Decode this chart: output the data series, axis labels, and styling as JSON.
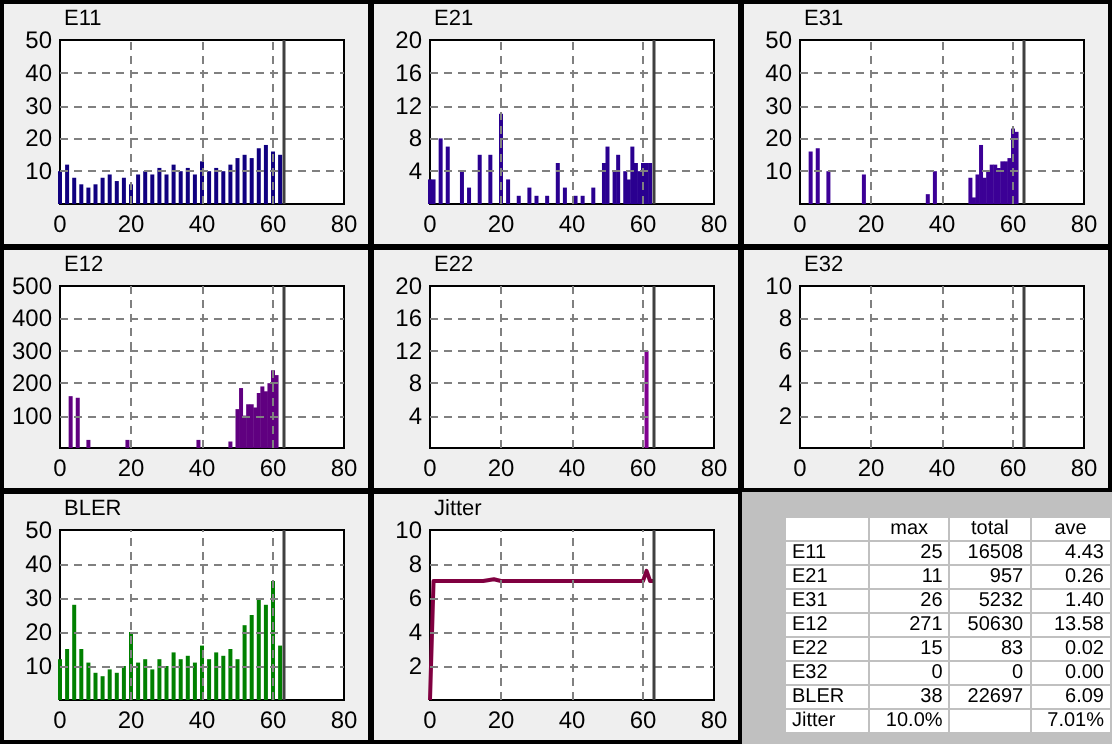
{
  "chart_data": [
    {
      "type": "bar",
      "title": "E11",
      "color": "#10007f",
      "x": [
        0,
        2,
        4,
        6,
        8,
        10,
        12,
        14,
        16,
        18,
        20,
        22,
        24,
        26,
        28,
        30,
        32,
        34,
        36,
        38,
        40,
        42,
        44,
        46,
        48,
        50,
        52,
        54,
        56,
        58,
        60,
        62
      ],
      "values": [
        10,
        12,
        8,
        6,
        5,
        6,
        8,
        9,
        7,
        8,
        6,
        9,
        10,
        9,
        11,
        9,
        12,
        10,
        11,
        9,
        13,
        10,
        11,
        10,
        12,
        14,
        15,
        14,
        17,
        18,
        16,
        15
      ],
      "xlim": [
        0,
        80
      ],
      "xticks": [
        0,
        20,
        40,
        60,
        80
      ],
      "ylim": [
        0,
        50
      ],
      "yticks": [
        10,
        20,
        30,
        40,
        50
      ],
      "grid": true,
      "ref_lines": [
        {
          "axis": "x",
          "value": 63,
          "color": "#404040"
        }
      ]
    },
    {
      "type": "bar",
      "title": "E21",
      "color": "#2a0090",
      "x": [
        0,
        1,
        3,
        5,
        9,
        11,
        14,
        17,
        20,
        22,
        25,
        28,
        30,
        33,
        36,
        38,
        41,
        43,
        46,
        49,
        50,
        52,
        53,
        55,
        56,
        57,
        58,
        59,
        60,
        61,
        62
      ],
      "values": [
        3,
        3,
        8,
        7,
        4,
        2,
        6,
        6,
        11,
        3,
        1,
        2,
        1,
        1,
        5,
        2,
        1,
        1,
        2,
        5,
        7,
        4,
        6,
        4,
        3,
        7,
        5,
        4,
        5,
        5,
        5
      ],
      "xlim": [
        0,
        80
      ],
      "xticks": [
        0,
        20,
        40,
        60,
        80
      ],
      "ylim": [
        0,
        20
      ],
      "yticks": [
        4,
        8,
        12,
        16,
        20
      ],
      "grid": true,
      "ref_lines": [
        {
          "axis": "x",
          "value": 63,
          "color": "#404040"
        }
      ]
    },
    {
      "type": "bar",
      "title": "E31",
      "color": "#3c0096",
      "x": [
        3,
        5,
        8,
        18,
        36,
        38,
        48,
        49,
        50,
        51,
        52,
        53,
        54,
        55,
        56,
        57,
        58,
        59,
        60,
        61
      ],
      "values": [
        16,
        17,
        10,
        9,
        3,
        10,
        8,
        2,
        9,
        18,
        8,
        10,
        12,
        12,
        11,
        13,
        13,
        14,
        23,
        22
      ],
      "xlim": [
        0,
        80
      ],
      "xticks": [
        0,
        20,
        40,
        60,
        80
      ],
      "ylim": [
        0,
        50
      ],
      "yticks": [
        10,
        20,
        30,
        40,
        50
      ],
      "grid": true,
      "ref_lines": [
        {
          "axis": "x",
          "value": 63,
          "color": "#404040"
        }
      ]
    },
    {
      "type": "bar",
      "title": "E12",
      "color": "#600080",
      "x": [
        3,
        5,
        8,
        19,
        39,
        48,
        50,
        51,
        52,
        53,
        54,
        55,
        56,
        57,
        58,
        59,
        60,
        61
      ],
      "values": [
        160,
        155,
        25,
        25,
        25,
        20,
        120,
        185,
        100,
        135,
        135,
        125,
        170,
        190,
        175,
        200,
        240,
        225
      ],
      "xlim": [
        0,
        80
      ],
      "xticks": [
        0,
        20,
        40,
        60,
        80
      ],
      "ylim": [
        0,
        500
      ],
      "yticks": [
        100,
        200,
        300,
        400,
        500
      ],
      "grid": true,
      "ref_lines": [
        {
          "axis": "x",
          "value": 63,
          "color": "#404040"
        }
      ]
    },
    {
      "type": "bar",
      "title": "E22",
      "color": "#800090",
      "x": [
        61
      ],
      "values": [
        12
      ],
      "xlim": [
        0,
        80
      ],
      "xticks": [
        0,
        20,
        40,
        60,
        80
      ],
      "ylim": [
        0,
        20
      ],
      "yticks": [
        4,
        8,
        12,
        16,
        20
      ],
      "grid": true,
      "ref_lines": [
        {
          "axis": "x",
          "value": 63,
          "color": "#404040"
        }
      ]
    },
    {
      "type": "bar",
      "title": "E32",
      "color": "#800090",
      "xlim": [
        0,
        80
      ],
      "xticks": [
        0,
        20,
        40,
        60,
        80
      ],
      "ylim": [
        0,
        10
      ],
      "yticks": [
        2,
        4,
        6,
        8,
        10
      ],
      "grid": true,
      "ref_lines": [
        {
          "axis": "x",
          "value": 63,
          "color": "#404040"
        }
      ]
    },
    {
      "type": "bar",
      "title": "BLER",
      "color": "#008000",
      "x": [
        0,
        2,
        4,
        6,
        8,
        10,
        12,
        14,
        16,
        18,
        20,
        22,
        24,
        26,
        28,
        30,
        32,
        34,
        36,
        38,
        40,
        42,
        44,
        46,
        48,
        50,
        52,
        54,
        56,
        58,
        60,
        62
      ],
      "values": [
        12,
        15,
        28,
        15,
        11,
        8,
        7,
        9,
        8,
        10,
        20,
        11,
        12,
        9,
        12,
        10,
        14,
        12,
        13,
        11,
        16,
        12,
        14,
        13,
        15,
        12,
        22,
        25,
        30,
        28,
        35,
        16
      ],
      "xlim": [
        0,
        80
      ],
      "xticks": [
        0,
        20,
        40,
        60,
        80
      ],
      "ylim": [
        0,
        50
      ],
      "yticks": [
        10,
        20,
        30,
        40,
        50
      ],
      "grid": true,
      "ref_lines": [
        {
          "axis": "x",
          "value": 63,
          "color": "#404040"
        }
      ]
    },
    {
      "type": "line",
      "title": "Jitter",
      "color": "#800040",
      "x": [
        0,
        1,
        5,
        10,
        15,
        18,
        20,
        25,
        30,
        35,
        40,
        45,
        50,
        55,
        60,
        61,
        62,
        63
      ],
      "values": [
        0,
        7,
        7,
        7,
        7,
        7.1,
        7,
        7,
        7,
        7,
        7,
        7,
        7,
        7,
        7,
        7.6,
        7,
        7
      ],
      "xlim": [
        0,
        80
      ],
      "xticks": [
        0,
        20,
        40,
        60,
        80
      ],
      "ylim": [
        0,
        10
      ],
      "yticks": [
        2,
        4,
        6,
        8,
        10
      ],
      "grid": true,
      "ref_lines": [
        {
          "axis": "x",
          "value": 63,
          "color": "#404040"
        }
      ]
    },
    {
      "type": "other",
      "categories": [
        "max",
        "total",
        "ave"
      ],
      "y_categories": [
        "E11",
        "E21",
        "E31",
        "E12",
        "E22",
        "E32",
        "BLER",
        "Jitter"
      ],
      "cell_labels": [
        [
          "25",
          "16508",
          "4.43"
        ],
        [
          "11",
          "957",
          "0.26"
        ],
        [
          "26",
          "5232",
          "1.40"
        ],
        [
          "271",
          "50630",
          "13.58"
        ],
        [
          "15",
          "83",
          "0.02"
        ],
        [
          "0",
          "0",
          "0.00"
        ],
        [
          "38",
          "22697",
          "6.09"
        ],
        [
          "10.0%",
          null,
          "7.01%"
        ]
      ]
    }
  ]
}
